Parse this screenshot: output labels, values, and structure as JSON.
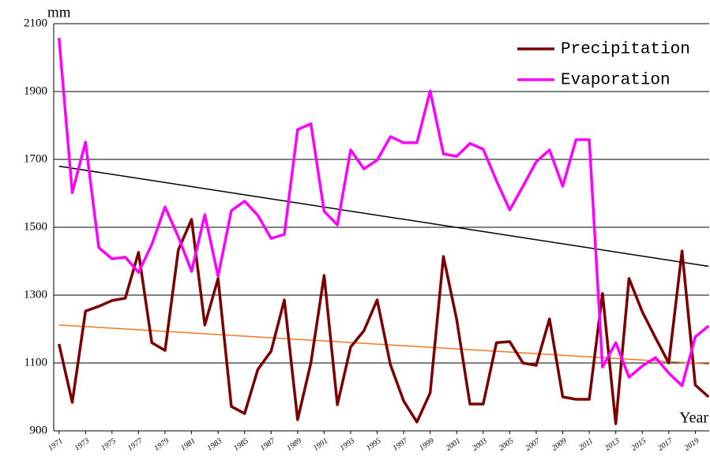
{
  "chart_data": {
    "type": "line",
    "y_label": "mm",
    "x_label": "Year",
    "x": [
      1971,
      1972,
      1973,
      1974,
      1975,
      1976,
      1977,
      1978,
      1979,
      1980,
      1981,
      1982,
      1983,
      1984,
      1985,
      1986,
      1987,
      1988,
      1989,
      1990,
      1991,
      1992,
      1993,
      1994,
      1995,
      1996,
      1997,
      1998,
      1999,
      2000,
      2001,
      2002,
      2003,
      2004,
      2005,
      2006,
      2007,
      2008,
      2009,
      2010,
      2011,
      2012,
      2013,
      2014,
      2015,
      2016,
      2017,
      2018,
      2019,
      2020
    ],
    "series": [
      {
        "name": "Precipitation",
        "color": "#7b0000",
        "values": [
          1156,
          984,
          1253,
          1267,
          1284,
          1291,
          1426,
          1160,
          1137,
          1433,
          1523,
          1212,
          1349,
          972,
          951,
          1081,
          1135,
          1286,
          933,
          1100,
          1358,
          977,
          1147,
          1195,
          1286,
          1095,
          988,
          926,
          1012,
          1414,
          1228,
          979,
          979,
          1160,
          1163,
          1100,
          1093,
          1230,
          1000,
          993,
          993,
          1305,
          921,
          1349,
          1251,
          1174,
          1100,
          1430,
          1035,
          1000
        ]
      },
      {
        "name": "Evaporation",
        "color": "#ff00ff",
        "values": [
          2058,
          1602,
          1751,
          1440,
          1407,
          1412,
          1367,
          1449,
          1560,
          1472,
          1370,
          1537,
          1356,
          1549,
          1577,
          1535,
          1467,
          1479,
          1788,
          1805,
          1547,
          1507,
          1728,
          1672,
          1698,
          1767,
          1749,
          1749,
          1902,
          1716,
          1709,
          1747,
          1730,
          1637,
          1551,
          1621,
          1693,
          1728,
          1621,
          1758,
          1758,
          1088,
          1160,
          1058,
          1091,
          1116,
          1070,
          1033,
          1177,
          1209
        ]
      }
    ],
    "trend_lines": [
      {
        "color": "#000000",
        "values": [
          1680,
          1385
        ]
      },
      {
        "color": "#f07820",
        "values": [
          1212,
          1097
        ]
      }
    ],
    "xlim": [
      1970.6,
      2020.05
    ],
    "xticks": [
      1971,
      1973,
      1975,
      1977,
      1979,
      1981,
      1983,
      1985,
      1987,
      1989,
      1991,
      1993,
      1995,
      1997,
      1999,
      2001,
      2003,
      2005,
      2007,
      2009,
      2011,
      2013,
      2015,
      2017,
      2019
    ],
    "ylim": [
      900,
      2100
    ],
    "yticks": [
      900,
      1100,
      1300,
      1500,
      1700,
      1900,
      2100
    ],
    "grid": true,
    "legend": "top-right"
  }
}
